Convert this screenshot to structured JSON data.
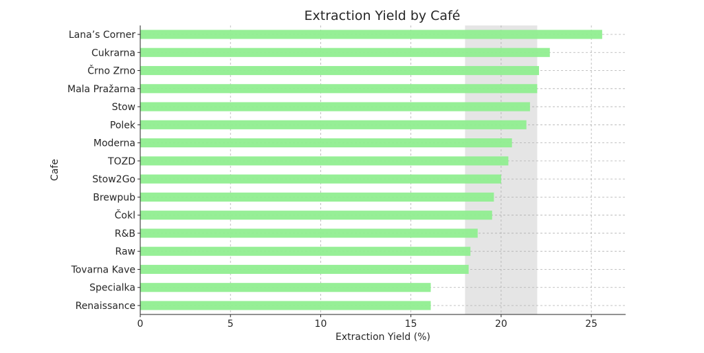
{
  "chart_data": {
    "type": "bar",
    "orientation": "horizontal",
    "title": "Extraction Yield by Café",
    "xlabel": "Extraction Yield (%)",
    "ylabel": "Cafe",
    "xlim": [
      0,
      26.9
    ],
    "xticks": [
      0,
      5,
      10,
      15,
      20,
      25
    ],
    "grid": true,
    "bar_color": "#90ee90",
    "highlight_band": {
      "from": 18,
      "to": 22,
      "color": "#d3d3d3"
    },
    "categories": [
      "Lana’s Corner",
      "Cukrarna",
      "Črno Zrno",
      "Mala Pražarna",
      "Stow",
      "Polek",
      "Moderna",
      "TOZD",
      "Stow2Go",
      "Brewpub",
      "Čokl",
      "R&B",
      "Raw",
      "Tovarna Kave",
      "Specialka",
      "Renaissance"
    ],
    "values": [
      25.6,
      22.7,
      22.1,
      22.0,
      21.6,
      21.4,
      20.6,
      20.4,
      20.0,
      19.6,
      19.5,
      18.7,
      18.3,
      18.2,
      16.1,
      16.1
    ]
  }
}
